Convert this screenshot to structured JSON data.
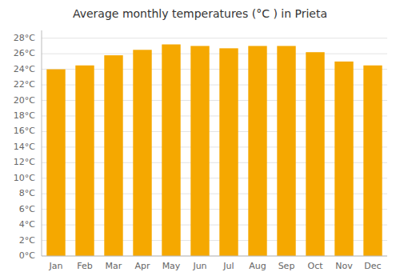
{
  "chart_data": {
    "type": "bar",
    "title": "Average monthly temperatures (°C ) in Prieta",
    "categories": [
      "Jan",
      "Feb",
      "Mar",
      "Apr",
      "May",
      "Jun",
      "Jul",
      "Aug",
      "Sep",
      "Oct",
      "Nov",
      "Dec"
    ],
    "values": [
      24.0,
      24.5,
      25.8,
      26.5,
      27.2,
      27.0,
      26.7,
      27.0,
      27.0,
      26.2,
      25.0,
      24.5
    ],
    "color": "#F5A800",
    "ylim": [
      0,
      29
    ],
    "yticks": [
      {
        "value": 0,
        "label": "0°C"
      },
      {
        "value": 2,
        "label": "2°C"
      },
      {
        "value": 4,
        "label": "4°C"
      },
      {
        "value": 6,
        "label": "6°C"
      },
      {
        "value": 8,
        "label": "8°C"
      },
      {
        "value": 10,
        "label": "10°C"
      },
      {
        "value": 12,
        "label": "12°C"
      },
      {
        "value": 14,
        "label": "14°C"
      },
      {
        "value": 16,
        "label": "16°C"
      },
      {
        "value": 18,
        "label": "18°C"
      },
      {
        "value": 20,
        "label": "20°C"
      },
      {
        "value": 22,
        "label": "22°C"
      },
      {
        "value": 24,
        "label": "24°C"
      },
      {
        "value": 26,
        "label": "26°C"
      },
      {
        "value": 28,
        "label": "28°C"
      }
    ],
    "grid": true
  }
}
